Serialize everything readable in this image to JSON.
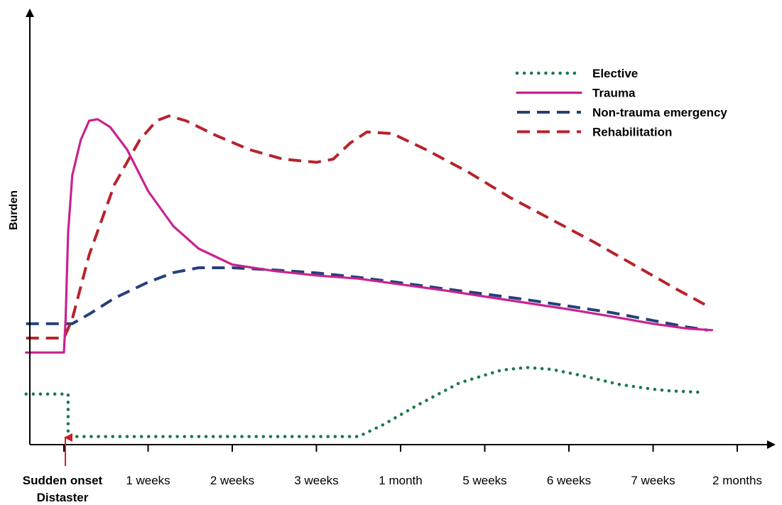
{
  "chart_data": {
    "type": "line",
    "xlabel": "",
    "ylabel": "Burden",
    "x_tick_labels": [
      "1 weeks",
      "2 weeks",
      "3 weeks",
      "1 month",
      "5 weeks",
      "6 weeks",
      "7 weeks",
      "2 months"
    ],
    "onset_marker": {
      "x": 0,
      "line1": "Sudden onset",
      "line2": "Distaster",
      "color": "#c0242b"
    },
    "xlim": [
      -0.45,
      8.6
    ],
    "ylim": [
      0,
      100
    ],
    "axis_arrows": true,
    "grid": false,
    "legend_position": "top-right",
    "series": [
      {
        "name": "Elective",
        "color": "#1a7a4a",
        "style": "dotted",
        "points": [
          [
            -0.45,
            14.5
          ],
          [
            0.05,
            14.5
          ],
          [
            0.05,
            1.2
          ],
          [
            3.5,
            1.2
          ],
          [
            3.8,
            5
          ],
          [
            4.2,
            11
          ],
          [
            4.7,
            18
          ],
          [
            5.2,
            22
          ],
          [
            5.5,
            22.8
          ],
          [
            5.8,
            22.2
          ],
          [
            6.2,
            20
          ],
          [
            6.6,
            17.5
          ],
          [
            7.0,
            16
          ],
          [
            7.2,
            15.5
          ],
          [
            7.6,
            15
          ]
        ]
      },
      {
        "name": "Trauma",
        "color": "#c8238f",
        "style": "solid",
        "points": [
          [
            -0.45,
            27.5
          ],
          [
            0,
            27.5
          ],
          [
            0.02,
            38
          ],
          [
            0.05,
            65
          ],
          [
            0.1,
            83
          ],
          [
            0.2,
            94
          ],
          [
            0.3,
            100
          ],
          [
            0.4,
            100.5
          ],
          [
            0.55,
            98
          ],
          [
            0.75,
            91
          ],
          [
            1.0,
            78
          ],
          [
            1.3,
            67
          ],
          [
            1.6,
            60
          ],
          [
            2.0,
            55
          ],
          [
            2.5,
            53
          ],
          [
            3.0,
            51.6
          ],
          [
            3.5,
            50.6
          ],
          [
            4.0,
            48.8
          ],
          [
            4.5,
            47
          ],
          [
            5.0,
            45
          ],
          [
            5.5,
            43
          ],
          [
            6.0,
            41
          ],
          [
            6.5,
            38.8
          ],
          [
            7.0,
            36.5
          ],
          [
            7.4,
            35
          ],
          [
            7.7,
            34.5
          ]
        ]
      },
      {
        "name": "Non-trauma emergency",
        "color": "#24407a",
        "style": "dashed",
        "points": [
          [
            -0.45,
            36.5
          ],
          [
            0.1,
            36.5
          ],
          [
            0.3,
            39.5
          ],
          [
            0.6,
            44.5
          ],
          [
            1.0,
            49.5
          ],
          [
            1.3,
            52.5
          ],
          [
            1.6,
            54
          ],
          [
            2.0,
            54
          ],
          [
            2.5,
            53.3
          ],
          [
            3.0,
            52.4
          ],
          [
            3.5,
            51
          ],
          [
            4.0,
            49.3
          ],
          [
            4.5,
            47.5
          ],
          [
            5.0,
            45.8
          ],
          [
            5.5,
            44
          ],
          [
            6.0,
            42
          ],
          [
            6.5,
            40
          ],
          [
            7.0,
            37.5
          ],
          [
            7.4,
            35.5
          ],
          [
            7.65,
            34.5
          ]
        ]
      },
      {
        "name": "Rehabilitation",
        "color": "#b8232b",
        "style": "dashed",
        "points": [
          [
            -0.45,
            32
          ],
          [
            0,
            32
          ],
          [
            0.1,
            38
          ],
          [
            0.3,
            58
          ],
          [
            0.6,
            80
          ],
          [
            0.9,
            94
          ],
          [
            1.1,
            100
          ],
          [
            1.25,
            101.5
          ],
          [
            1.45,
            100
          ],
          [
            1.8,
            95.5
          ],
          [
            2.2,
            91
          ],
          [
            2.6,
            88
          ],
          [
            3.0,
            87
          ],
          [
            3.2,
            88
          ],
          [
            3.4,
            93
          ],
          [
            3.6,
            96.5
          ],
          [
            3.9,
            96
          ],
          [
            4.3,
            91
          ],
          [
            4.8,
            84
          ],
          [
            5.3,
            76
          ],
          [
            5.8,
            69
          ],
          [
            6.3,
            62
          ],
          [
            6.8,
            54.5
          ],
          [
            7.3,
            47
          ],
          [
            7.65,
            42
          ]
        ]
      }
    ]
  }
}
